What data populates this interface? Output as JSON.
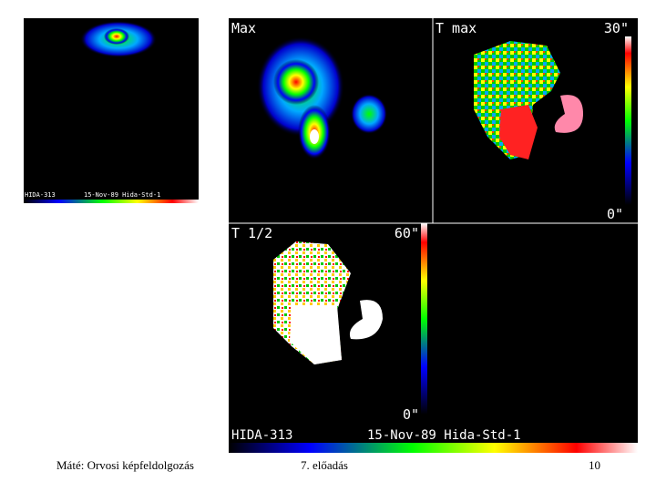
{
  "small_image": {
    "caption_id": "HIDA-313",
    "caption_info": "15-Nov-89 Hida-Std-1"
  },
  "main_image": {
    "panels": [
      {
        "label": "Max"
      },
      {
        "label": "T max",
        "scale_max": "30\"",
        "scale_min": "0\""
      },
      {
        "label": "T 1/2",
        "scale_max": "60\"",
        "scale_min": "0\""
      }
    ],
    "caption_id": "HIDA-313",
    "caption_info": "15-Nov-89 Hida-Std-1"
  },
  "footer": {
    "author": "Máté: Orvosi képfeldolgozás",
    "lecture": "7. előadás",
    "page": "10"
  }
}
